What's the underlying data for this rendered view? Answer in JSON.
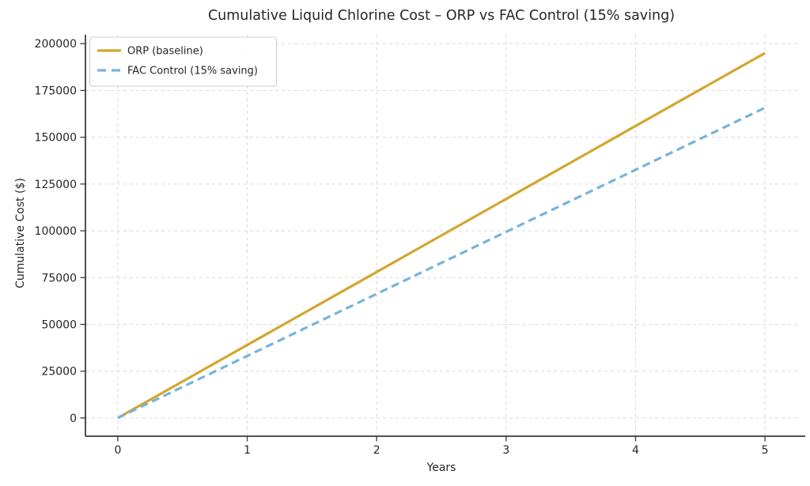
{
  "figure": {
    "background_color": "#ffffff"
  },
  "chart_data": {
    "type": "line",
    "title": "Cumulative Liquid Chlorine Cost – ORP vs FAC Control (15% saving)",
    "xlabel": "Years",
    "ylabel": "Cumulative Cost ($)",
    "x": [
      0,
      1,
      2,
      3,
      4,
      5
    ],
    "series": [
      {
        "name": "ORP (baseline)",
        "values": [
          0,
          39000,
          78000,
          117000,
          156000,
          195000
        ],
        "color": "#d2a62f",
        "line_style": "solid",
        "line_width": 3.2
      },
      {
        "name": "FAC Control (15% saving)",
        "values": [
          0,
          33150,
          66300,
          99450,
          132600,
          165750
        ],
        "color": "#76b4d8",
        "line_style": "dashed",
        "line_width": 3.2
      }
    ],
    "xticks": [
      0,
      1,
      2,
      3,
      4,
      5
    ],
    "xtick_labels": [
      "0",
      "1",
      "2",
      "3",
      "4",
      "5"
    ],
    "yticks": [
      0,
      25000,
      50000,
      75000,
      100000,
      125000,
      150000,
      175000,
      200000
    ],
    "ytick_labels": [
      "0",
      "25000",
      "50000",
      "75000",
      "100000",
      "125000",
      "150000",
      "175000",
      "200000"
    ],
    "xlim": [
      -0.25,
      5.25
    ],
    "ylim": [
      -9750,
      204750
    ],
    "grid": true,
    "grid_color": "#d9d9d9",
    "grid_style": "dashed",
    "legend_position": "upper left",
    "legend_border_color": "#cccccc",
    "legend_background_color": "#ffffff",
    "axis_color": "#3a3a3a",
    "text_color": "#262626"
  }
}
